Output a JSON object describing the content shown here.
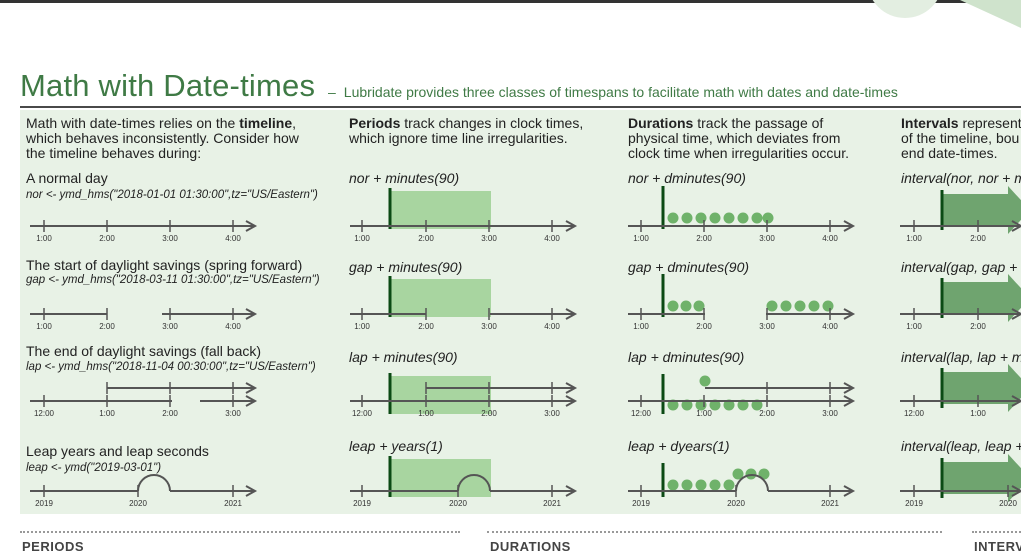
{
  "colors": {
    "accent": "#3f7a45",
    "band": "#a8d5a0",
    "dark": "#0b4a14",
    "arrow": "#6fa46f",
    "panel": "#e8f2e6"
  },
  "title": "Math with Date-times",
  "dash": "–",
  "subtitle": "Lubridate provides three classes of timespans to facilitate math with dates and date-times",
  "intro": {
    "line1_pre": "Math with date-times relies on the ",
    "line1_bold": "timeline",
    "line1_post": ",",
    "line2": "which behaves inconsistently.  Consider how",
    "line3": "the timeline behaves during:"
  },
  "scenarios": [
    {
      "title": "A normal day",
      "code": "nor <- ymd_hms(\"2018-01-01 01:30:00\",tz=\"US/Eastern\")",
      "ticks": [
        "1:00",
        "2:00",
        "3:00",
        "4:00"
      ]
    },
    {
      "title": "The start of daylight savings (spring forward)",
      "code": "gap <- ymd_hms(\"2018-03-11 01:30:00\",tz=\"US/Eastern\")",
      "ticks": [
        "1:00",
        "2:00",
        "3:00",
        "4:00"
      ]
    },
    {
      "title": "The end of daylight savings (fall back)",
      "code": "lap <- ymd_hms(\"2018-11-04 00:30:00\",tz=\"US/Eastern\")",
      "ticks": [
        "12:00",
        "1:00",
        "2:00",
        "3:00"
      ]
    },
    {
      "title": "Leap years and leap seconds",
      "code": "leap <- ymd(\"2019-03-01\")",
      "ticks": [
        "2019",
        "2020",
        "2021"
      ]
    }
  ],
  "periods": {
    "head_bold": "Periods",
    "head_rest": " track changes in clock times,",
    "head_line2": "which ignore time line irregularities.",
    "rows": [
      {
        "expr": "nor + minutes(90)",
        "ticks": [
          "1:00",
          "2:00",
          "3:00",
          "4:00"
        ]
      },
      {
        "expr": "gap + minutes(90)",
        "ticks": [
          "1:00",
          "2:00",
          "3:00",
          "4:00"
        ]
      },
      {
        "expr": "lap + minutes(90)",
        "ticks": [
          "12:00",
          "1:00",
          "2:00",
          "3:00"
        ]
      },
      {
        "expr": "leap + years(1)",
        "ticks": [
          "2019",
          "2020",
          "2021"
        ]
      }
    ]
  },
  "durations": {
    "head_bold": "Durations",
    "head_rest": " track the passage of",
    "head_line2": "physical time, which deviates from",
    "head_line3": "clock time when irregularities occur.",
    "rows": [
      {
        "expr": "nor + dminutes(90)",
        "ticks": [
          "1:00",
          "2:00",
          "3:00",
          "4:00"
        ]
      },
      {
        "expr": "gap + dminutes(90)",
        "ticks": [
          "1:00",
          "2:00",
          "3:00",
          "4:00"
        ]
      },
      {
        "expr": "lap + dminutes(90)",
        "ticks": [
          "12:00",
          "1:00",
          "2:00",
          "3:00"
        ]
      },
      {
        "expr": "leap + dyears(1)",
        "ticks": [
          "2019",
          "2020",
          "2021"
        ]
      }
    ]
  },
  "intervals": {
    "head_bold": "Intervals",
    "head_rest": " represent",
    "head_line2": "of the timeline, bou",
    "head_line3": "end date-times.",
    "rows": [
      {
        "expr": "interval(nor, nor + m",
        "ticks": [
          "1:00",
          "2:00"
        ]
      },
      {
        "expr": "interval(gap, gap + r",
        "ticks": [
          "1:00",
          "2:00"
        ]
      },
      {
        "expr": "interval(lap, lap + m",
        "ticks": [
          "12:00",
          "1:00"
        ]
      },
      {
        "expr": "interval(leap, leap +",
        "ticks": [
          "2019",
          "2020"
        ]
      }
    ]
  },
  "sections": [
    "PERIODS",
    "DURATIONS",
    "INTERV"
  ]
}
